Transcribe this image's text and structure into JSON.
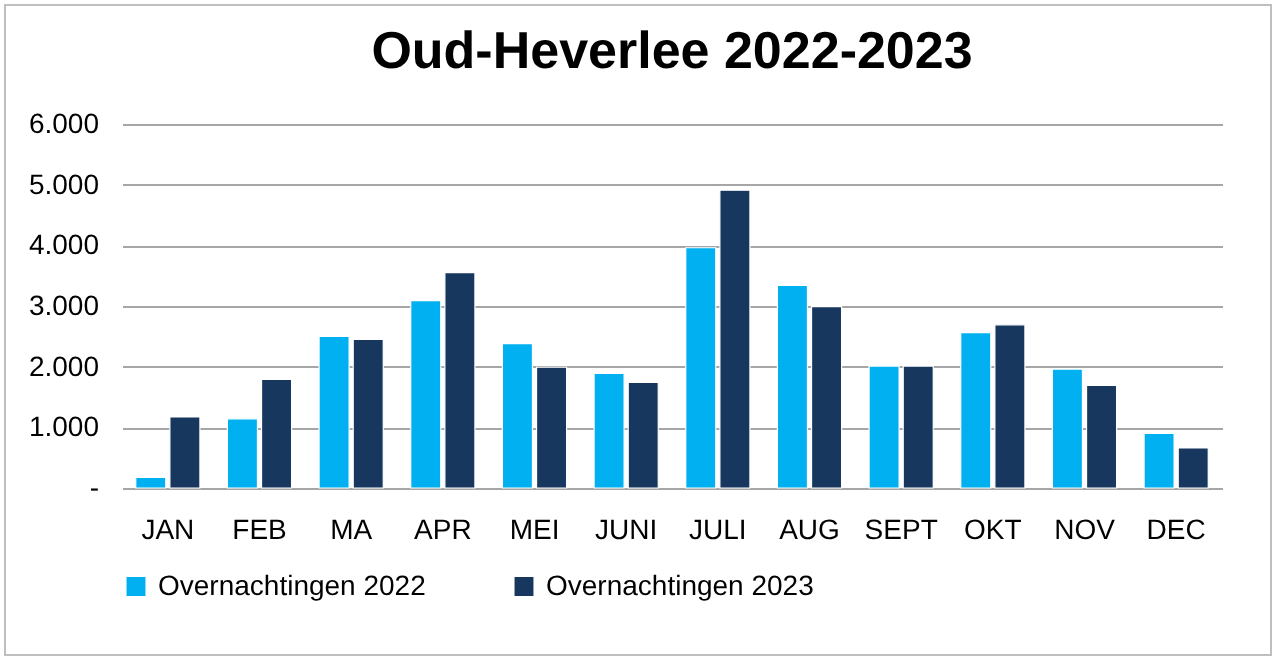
{
  "chart_data": {
    "type": "bar",
    "title": "Oud-Heverlee 2022-2023",
    "categories": [
      "JAN",
      "FEB",
      "MA",
      "APR",
      "MEI",
      "JUNI",
      "JULI",
      "AUG",
      "SEPT",
      "OKT",
      "NOV",
      "DEC"
    ],
    "series": [
      {
        "name": "Overnachtingen 2022",
        "color": "#00b0f0",
        "values": [
          175,
          1140,
          2500,
          3090,
          2380,
          1890,
          3960,
          3340,
          2010,
          2560,
          1960,
          900
        ]
      },
      {
        "name": "Overnachtingen 2023",
        "color": "#17375e",
        "values": [
          1170,
          1790,
          2450,
          3550,
          1990,
          1740,
          4910,
          2990,
          2010,
          2690,
          1690,
          660
        ]
      }
    ],
    "ylim": [
      0,
      6000
    ],
    "yticks": [
      {
        "value": 0,
        "label": "-"
      },
      {
        "value": 1000,
        "label": "1.000"
      },
      {
        "value": 2000,
        "label": "2.000"
      },
      {
        "value": 3000,
        "label": "3.000"
      },
      {
        "value": 4000,
        "label": "4.000"
      },
      {
        "value": 5000,
        "label": "5.000"
      },
      {
        "value": 6000,
        "label": "6.000"
      }
    ],
    "grid": "y",
    "legend": "bottom"
  }
}
